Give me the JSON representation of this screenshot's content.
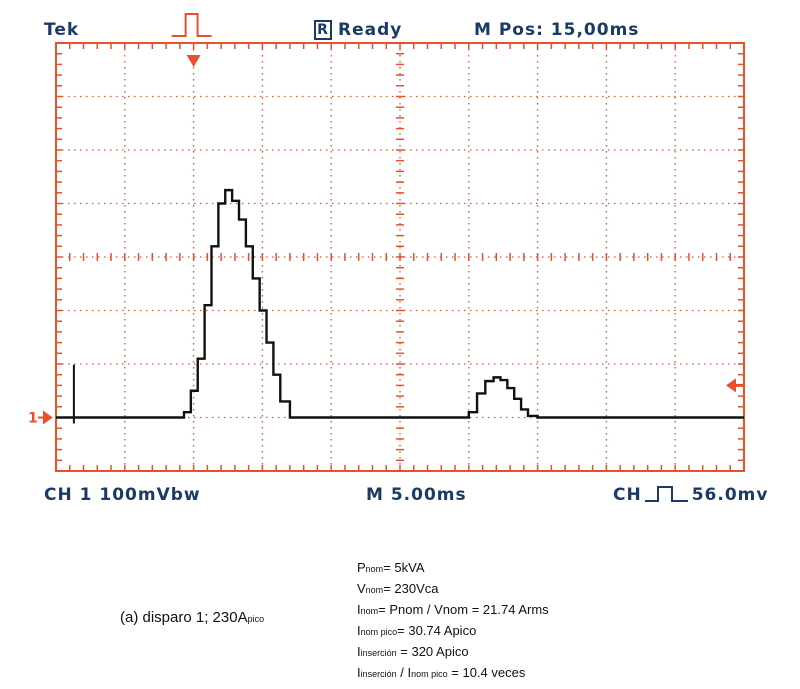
{
  "header": {
    "brand": "Tek",
    "status_letter": "R",
    "status": "Ready",
    "mpos": "M Pos: 15,00ms"
  },
  "footer": {
    "channel": "CH 1 100mVbw",
    "timebase": "M 5.00ms",
    "trigger_prefix": "CH",
    "trigger_level": "56.0mv"
  },
  "markers": {
    "channel_label": "1"
  },
  "colors": {
    "grid": "#e8512a",
    "trace": "#111111",
    "text": "#1c3a66"
  },
  "caption": {
    "main": "(a) disparo 1; 230A",
    "sub": "pico"
  },
  "specs": [
    {
      "parts": [
        [
          "P",
          "big"
        ],
        [
          "nom",
          "sub"
        ],
        [
          "= 5kVA",
          "big"
        ]
      ]
    },
    {
      "parts": [
        [
          "V",
          "big"
        ],
        [
          "nom",
          "sub"
        ],
        [
          "= 230Vca",
          "big"
        ]
      ]
    },
    {
      "parts": [
        [
          "I",
          "big"
        ],
        [
          "nom",
          "sub"
        ],
        [
          "= Pnom / Vnom = 21.74 Arms",
          "big"
        ]
      ]
    },
    {
      "parts": [
        [
          "I",
          "big"
        ],
        [
          "nom pico",
          "sub"
        ],
        [
          "= 30.74 Apico",
          "big"
        ]
      ]
    },
    {
      "parts": [
        [
          "I",
          "big"
        ],
        [
          "inserción",
          "sub"
        ],
        [
          "  = 320 Apico",
          "big"
        ]
      ]
    },
    {
      "parts": [
        [
          "I",
          "big"
        ],
        [
          "inserción",
          "sub"
        ],
        [
          " / ",
          "big"
        ],
        [
          "I",
          "big"
        ],
        [
          "nom pico",
          "sub"
        ],
        [
          " = 10.4 veces",
          "big"
        ]
      ]
    }
  ],
  "chart_data": {
    "type": "line",
    "x_unit": "ms",
    "y_unit": "mV",
    "x_div": 5,
    "y_div": 100,
    "xlim": [
      0,
      50
    ],
    "ylim": [
      -100,
      700
    ],
    "series": [
      {
        "x": [
          0,
          2,
          4,
          5.5,
          6.8,
          8.8,
          9.3,
          9.8,
          10.3,
          10.8,
          11.3,
          11.8,
          12.3,
          12.8,
          13.3,
          13.8,
          14.3,
          14.8,
          15.3,
          15.8,
          16.3,
          17.0,
          18.5,
          22,
          26,
          29,
          30.0,
          30.6,
          31.2,
          31.8,
          32.3,
          32.8,
          33.3,
          33.8,
          34.3,
          35.0,
          36.0,
          40,
          45,
          50
        ],
        "y": [
          0,
          0,
          0,
          0,
          0,
          0,
          10,
          50,
          110,
          210,
          320,
          400,
          425,
          405,
          370,
          320,
          260,
          200,
          140,
          80,
          30,
          0,
          0,
          0,
          0,
          0,
          10,
          45,
          68,
          75,
          70,
          55,
          35,
          15,
          3,
          0,
          0,
          0,
          0,
          0
        ]
      }
    ],
    "spikes": [
      {
        "x": 1.3,
        "y": 80
      }
    ],
    "trigger_arrow_x": 10,
    "right_marker_y": 60
  }
}
